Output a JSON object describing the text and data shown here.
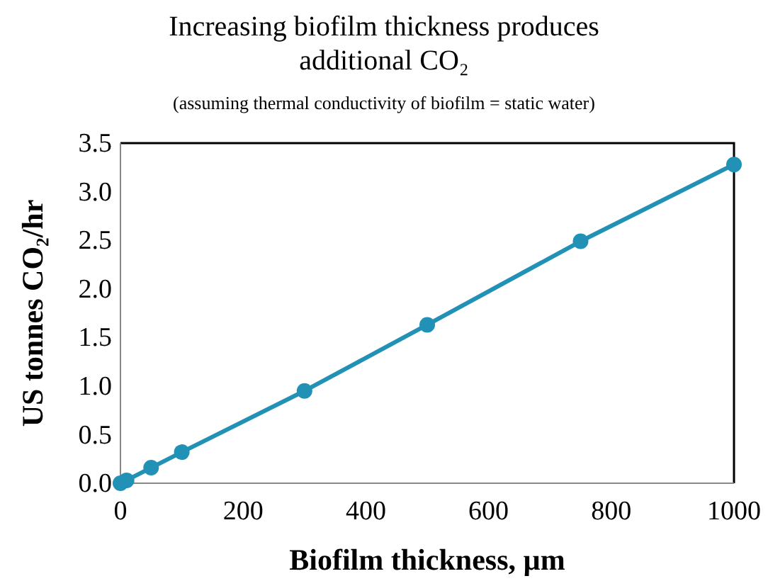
{
  "chart_data": {
    "type": "line",
    "title": "Increasing biofilm thickness produces additional CO₂",
    "subtitle": "(assuming thermal conductivity of biofilm = static water)",
    "xlabel": "Biofilm thickness, µm",
    "ylabel": "US tonnes CO₂/hr",
    "x": [
      0,
      10,
      50,
      100,
      300,
      500,
      750,
      1000
    ],
    "series": [
      {
        "color": "#2191b5",
        "values": [
          0,
          0.03,
          0.16,
          0.32,
          0.95,
          1.63,
          2.49,
          3.28
        ]
      }
    ],
    "xlim": [
      0,
      1000
    ],
    "xticks": [
      0,
      200,
      400,
      600,
      800,
      1000
    ],
    "ylim": [
      0,
      3.5
    ],
    "yticks": [
      {
        "value": 0,
        "label": "0.0"
      },
      {
        "value": 0.5,
        "label": "0.5"
      },
      {
        "value": 1,
        "label": "1.0"
      },
      {
        "value": 1.5,
        "label": "1.5"
      },
      {
        "value": 2,
        "label": "2.0"
      },
      {
        "value": 2.5,
        "label": "2.5"
      },
      {
        "value": 3,
        "label": "3.0"
      },
      {
        "value": 3.5,
        "label": "3.5"
      }
    ],
    "grid": false,
    "marker": "circle",
    "line_style": "solid"
  }
}
